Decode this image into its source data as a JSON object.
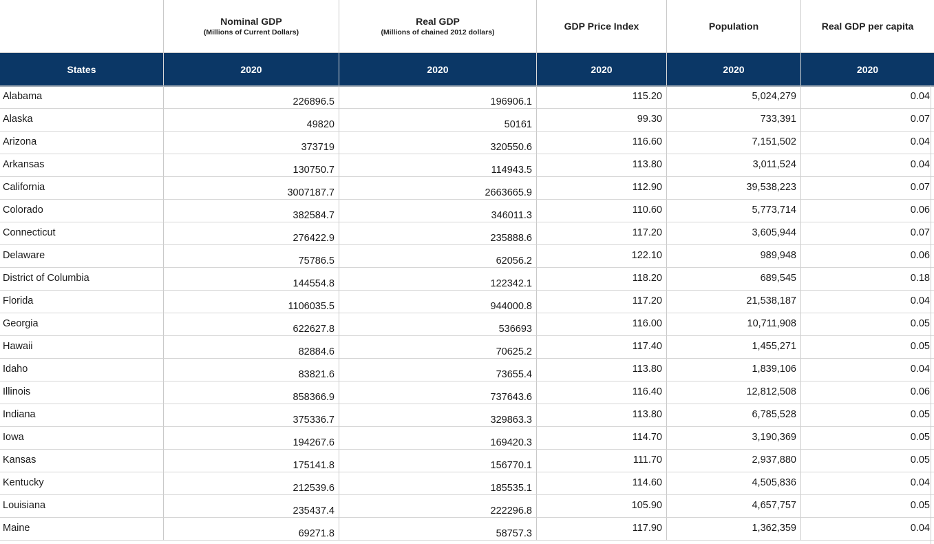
{
  "header": {
    "titles": [
      {
        "main": "",
        "sub": ""
      },
      {
        "main": "Nominal GDP",
        "sub": "(Millions of Current Dollars)"
      },
      {
        "main": "Real GDP",
        "sub": "(Millions of chained 2012 dollars)"
      },
      {
        "main": "GDP Price Index",
        "sub": ""
      },
      {
        "main": "Population",
        "sub": ""
      },
      {
        "main": "Real GDP per capita",
        "sub": ""
      }
    ],
    "row2": [
      "States",
      "2020",
      "2020",
      "2020",
      "2020",
      "2020"
    ]
  },
  "rows": [
    {
      "state": "Alabama",
      "nominal_gdp": "226896.5",
      "real_gdp": "196906.1",
      "price_index": "115.20",
      "population": "5,024,279",
      "per_capita": "0.04"
    },
    {
      "state": "Alaska",
      "nominal_gdp": "49820",
      "real_gdp": "50161",
      "price_index": "99.30",
      "population": "733,391",
      "per_capita": "0.07"
    },
    {
      "state": "Arizona",
      "nominal_gdp": "373719",
      "real_gdp": "320550.6",
      "price_index": "116.60",
      "population": "7,151,502",
      "per_capita": "0.04"
    },
    {
      "state": "Arkansas",
      "nominal_gdp": "130750.7",
      "real_gdp": "114943.5",
      "price_index": "113.80",
      "population": "3,011,524",
      "per_capita": "0.04"
    },
    {
      "state": "California",
      "nominal_gdp": "3007187.7",
      "real_gdp": "2663665.9",
      "price_index": "112.90",
      "population": "39,538,223",
      "per_capita": "0.07"
    },
    {
      "state": "Colorado",
      "nominal_gdp": "382584.7",
      "real_gdp": "346011.3",
      "price_index": "110.60",
      "population": "5,773,714",
      "per_capita": "0.06"
    },
    {
      "state": "Connecticut",
      "nominal_gdp": "276422.9",
      "real_gdp": "235888.6",
      "price_index": "117.20",
      "population": "3,605,944",
      "per_capita": "0.07"
    },
    {
      "state": "Delaware",
      "nominal_gdp": "75786.5",
      "real_gdp": "62056.2",
      "price_index": "122.10",
      "population": "989,948",
      "per_capita": "0.06"
    },
    {
      "state": "District of Columbia",
      "nominal_gdp": "144554.8",
      "real_gdp": "122342.1",
      "price_index": "118.20",
      "population": "689,545",
      "per_capita": "0.18"
    },
    {
      "state": "Florida",
      "nominal_gdp": "1106035.5",
      "real_gdp": "944000.8",
      "price_index": "117.20",
      "population": "21,538,187",
      "per_capita": "0.04"
    },
    {
      "state": "Georgia",
      "nominal_gdp": "622627.8",
      "real_gdp": "536693",
      "price_index": "116.00",
      "population": "10,711,908",
      "per_capita": "0.05"
    },
    {
      "state": "Hawaii",
      "nominal_gdp": "82884.6",
      "real_gdp": "70625.2",
      "price_index": "117.40",
      "population": "1,455,271",
      "per_capita": "0.05"
    },
    {
      "state": "Idaho",
      "nominal_gdp": "83821.6",
      "real_gdp": "73655.4",
      "price_index": "113.80",
      "population": "1,839,106",
      "per_capita": "0.04"
    },
    {
      "state": "Illinois",
      "nominal_gdp": "858366.9",
      "real_gdp": "737643.6",
      "price_index": "116.40",
      "population": "12,812,508",
      "per_capita": "0.06"
    },
    {
      "state": "Indiana",
      "nominal_gdp": "375336.7",
      "real_gdp": "329863.3",
      "price_index": "113.80",
      "population": "6,785,528",
      "per_capita": "0.05"
    },
    {
      "state": "Iowa",
      "nominal_gdp": "194267.6",
      "real_gdp": "169420.3",
      "price_index": "114.70",
      "population": "3,190,369",
      "per_capita": "0.05"
    },
    {
      "state": "Kansas",
      "nominal_gdp": "175141.8",
      "real_gdp": "156770.1",
      "price_index": "111.70",
      "population": "2,937,880",
      "per_capita": "0.05"
    },
    {
      "state": "Kentucky",
      "nominal_gdp": "212539.6",
      "real_gdp": "185535.1",
      "price_index": "114.60",
      "population": "4,505,836",
      "per_capita": "0.04"
    },
    {
      "state": "Louisiana",
      "nominal_gdp": "235437.4",
      "real_gdp": "222296.8",
      "price_index": "105.90",
      "population": "4,657,757",
      "per_capita": "0.05"
    },
    {
      "state": "Maine",
      "nominal_gdp": "69271.8",
      "real_gdp": "58757.3",
      "price_index": "117.90",
      "population": "1,362,359",
      "per_capita": "0.04"
    }
  ]
}
